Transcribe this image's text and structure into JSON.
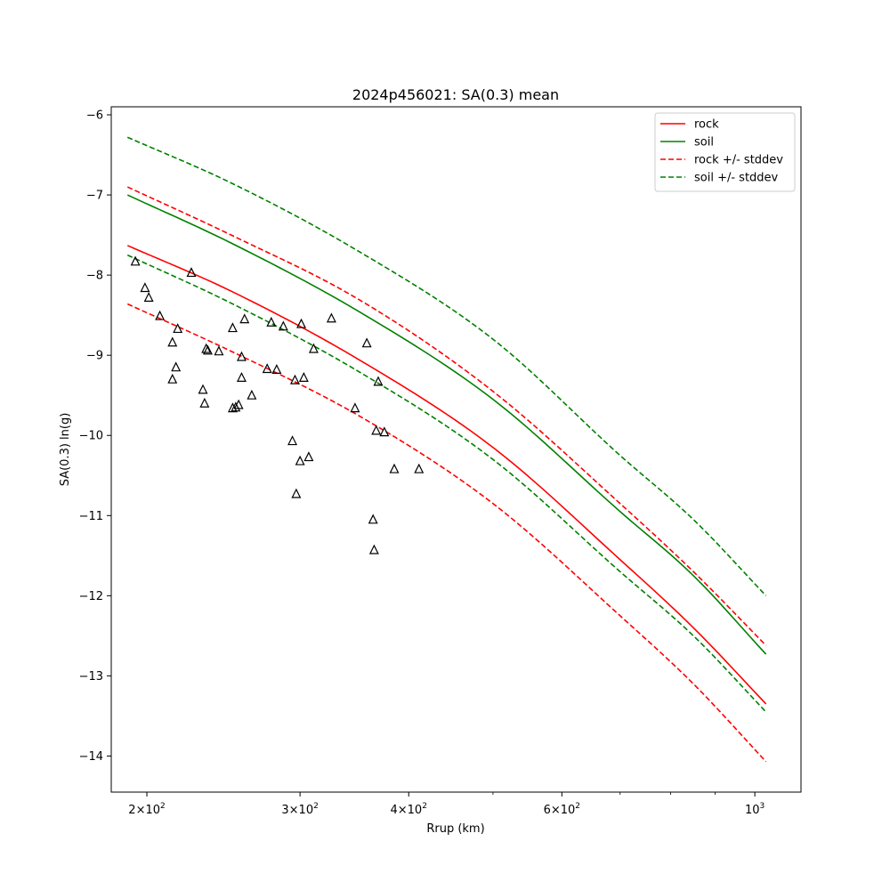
{
  "chart_data": {
    "type": "line",
    "title": "2024p456021: SA(0.3) mean",
    "xlabel": "Rrup (km)",
    "ylabel": "SA(0.3) ln(g)",
    "xscale": "log",
    "xlim": [
      182,
      1130
    ],
    "ylim": [
      -14.45,
      -5.9
    ],
    "xticks": [
      {
        "value": 200,
        "base": "2",
        "exp": "2"
      },
      {
        "value": 300,
        "base": "3",
        "exp": "2"
      },
      {
        "value": 400,
        "base": "4",
        "exp": "2"
      },
      {
        "value": 600,
        "base": "6",
        "exp": "2"
      },
      {
        "value": 1000,
        "base": "",
        "exp": "3"
      }
    ],
    "yticks": [
      "-14",
      "-13",
      "-12",
      "-11",
      "-10",
      "-9",
      "-8",
      "-7",
      "-6"
    ],
    "grid": false,
    "legend_position": "top-right",
    "series": [
      {
        "name": "rock",
        "color": "#ff0000",
        "style": "solid",
        "x": [
          190,
          250,
          350,
          500,
          700,
          850,
          1030
        ],
        "y": [
          -7.63,
          -8.2,
          -9.05,
          -10.15,
          -11.55,
          -12.4,
          -13.35
        ]
      },
      {
        "name": "soil",
        "color": "#008000",
        "style": "solid",
        "x": [
          190,
          250,
          350,
          500,
          700,
          850,
          1030
        ],
        "y": [
          -7.0,
          -7.6,
          -8.45,
          -9.55,
          -10.95,
          -11.75,
          -12.73
        ]
      },
      {
        "name": "rock +/- stddev",
        "color": "#ff0000",
        "style": "dashed",
        "x": [
          190,
          250,
          350,
          500,
          700,
          850,
          1030
        ],
        "y": [
          -6.9,
          -7.5,
          -8.3,
          -9.45,
          -10.85,
          -11.7,
          -12.62
        ]
      },
      {
        "name": "",
        "color": "#ff0000",
        "style": "dashed",
        "x": [
          190,
          250,
          350,
          500,
          700,
          850,
          1030
        ],
        "y": [
          -8.36,
          -8.95,
          -9.75,
          -10.85,
          -12.25,
          -13.1,
          -14.07
        ]
      },
      {
        "name": "soil +/- stddev",
        "color": "#008000",
        "style": "dashed",
        "x": [
          190,
          250,
          350,
          500,
          700,
          850,
          1030
        ],
        "y": [
          -6.28,
          -6.85,
          -7.7,
          -8.8,
          -10.25,
          -11.05,
          -12.0
        ]
      },
      {
        "name": "",
        "color": "#008000",
        "style": "dashed",
        "x": [
          190,
          250,
          350,
          500,
          700,
          850,
          1030
        ],
        "y": [
          -7.75,
          -8.35,
          -9.2,
          -10.3,
          -11.7,
          -12.5,
          -13.45
        ]
      }
    ],
    "observations": {
      "marker": "triangle",
      "points": [
        [
          194,
          -7.83
        ],
        [
          199,
          -8.16
        ],
        [
          201,
          -8.28
        ],
        [
          207,
          -8.51
        ],
        [
          214,
          -8.84
        ],
        [
          214,
          -9.3
        ],
        [
          216,
          -9.15
        ],
        [
          217,
          -8.67
        ],
        [
          225,
          -7.97
        ],
        [
          232,
          -9.43
        ],
        [
          233,
          -9.6
        ],
        [
          234,
          -8.92
        ],
        [
          235,
          -8.94
        ],
        [
          242,
          -8.95
        ],
        [
          251,
          -8.66
        ],
        [
          251,
          -9.66
        ],
        [
          253,
          -9.65
        ],
        [
          255,
          -9.62
        ],
        [
          257,
          -9.02
        ],
        [
          257,
          -9.28
        ],
        [
          259,
          -8.55
        ],
        [
          264,
          -9.5
        ],
        [
          275,
          -9.17
        ],
        [
          278,
          -8.59
        ],
        [
          282,
          -9.18
        ],
        [
          287,
          -8.64
        ],
        [
          294,
          -10.07
        ],
        [
          296,
          -9.31
        ],
        [
          297,
          -10.73
        ],
        [
          300,
          -10.32
        ],
        [
          301,
          -8.61
        ],
        [
          303,
          -9.28
        ],
        [
          307,
          -10.27
        ],
        [
          311,
          -8.92
        ],
        [
          326,
          -8.54
        ],
        [
          347,
          -9.66
        ],
        [
          358,
          -8.85
        ],
        [
          364,
          -11.05
        ],
        [
          365,
          -11.43
        ],
        [
          367,
          -9.94
        ],
        [
          369,
          -9.33
        ],
        [
          375,
          -9.96
        ],
        [
          385,
          -10.42
        ],
        [
          411,
          -10.42
        ]
      ]
    }
  }
}
